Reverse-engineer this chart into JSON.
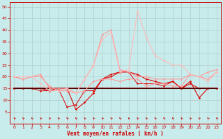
{
  "xlabel": "Vent moyen/en rafales ( km/h )",
  "xlim": [
    -0.5,
    23.5
  ],
  "ylim": [
    0,
    52
  ],
  "yticks": [
    5,
    10,
    15,
    20,
    25,
    30,
    35,
    40,
    45,
    50
  ],
  "xticks": [
    0,
    1,
    2,
    3,
    4,
    5,
    6,
    7,
    8,
    9,
    10,
    11,
    12,
    13,
    14,
    15,
    16,
    17,
    18,
    19,
    20,
    21,
    22,
    23
  ],
  "bg_color": "#c8ecec",
  "grid_color": "#b0cccc",
  "axis_color": "#cc0000",
  "series": [
    {
      "x": [
        0,
        1,
        2,
        3,
        4,
        5,
        6,
        7,
        8,
        9,
        10,
        11,
        12,
        13,
        14,
        15,
        16,
        17,
        18,
        19,
        20,
        21,
        22,
        23
      ],
      "y": [
        15,
        15,
        15,
        15,
        14,
        15,
        15,
        6,
        9,
        13,
        19,
        21,
        22,
        22,
        21,
        19,
        18,
        17,
        18,
        15,
        18,
        11,
        15,
        15
      ],
      "color": "#dd0000",
      "lw": 0.8,
      "marker": "D",
      "ms": 1.5
    },
    {
      "x": [
        0,
        1,
        2,
        3,
        4,
        5,
        6,
        7,
        8,
        9,
        10,
        11,
        12,
        13,
        14,
        15,
        16,
        17,
        18,
        19,
        20,
        21,
        22,
        23
      ],
      "y": [
        15,
        15,
        15,
        14,
        14,
        15,
        7,
        8,
        14,
        14,
        19,
        20,
        22,
        22,
        17,
        17,
        17,
        16,
        18,
        15,
        17,
        15,
        15,
        15
      ],
      "color": "#dd0000",
      "lw": 0.7,
      "marker": "o",
      "ms": 1.5
    },
    {
      "x": [
        0,
        1,
        2,
        3,
        4,
        5,
        6,
        7,
        8,
        9,
        10,
        11,
        12,
        13,
        14,
        15,
        16,
        17,
        18,
        19,
        20,
        21,
        22,
        23
      ],
      "y": [
        15,
        15,
        15,
        15,
        15,
        15,
        15,
        15,
        15,
        15,
        15,
        15,
        15,
        15,
        15,
        15,
        15,
        15,
        15,
        15,
        15,
        15,
        15,
        15
      ],
      "color": "#880000",
      "lw": 1.2,
      "marker": null,
      "ms": 0
    },
    {
      "x": [
        0,
        1,
        2,
        3,
        4,
        5,
        6,
        7,
        8,
        9,
        10,
        11,
        12,
        13,
        14,
        15,
        16,
        17,
        18,
        19,
        20,
        21,
        22,
        23
      ],
      "y": [
        15,
        15,
        15,
        15,
        15,
        15,
        15,
        15,
        15,
        15,
        15,
        15,
        15,
        15,
        15,
        15,
        15,
        15,
        15,
        15,
        15,
        15,
        15,
        15
      ],
      "color": "#440000",
      "lw": 0.8,
      "marker": null,
      "ms": 0
    },
    {
      "x": [
        0,
        1,
        2,
        3,
        4,
        5,
        6,
        7,
        8,
        9,
        10,
        11,
        12,
        13,
        14,
        15,
        16,
        17,
        18,
        19,
        20,
        21,
        22,
        23
      ],
      "y": [
        20,
        19,
        20,
        20,
        16,
        14,
        14,
        13,
        14,
        18,
        19,
        19,
        18,
        19,
        19,
        16,
        17,
        17,
        16,
        16,
        21,
        20,
        22,
        23
      ],
      "color": "#ff9999",
      "lw": 0.8,
      "marker": "D",
      "ms": 1.5
    },
    {
      "x": [
        0,
        1,
        2,
        3,
        4,
        5,
        6,
        7,
        8,
        9,
        10,
        11,
        12,
        13,
        14,
        15,
        16,
        17,
        18,
        19,
        20,
        21,
        22,
        23
      ],
      "y": [
        20,
        19,
        20,
        21,
        15,
        15,
        15,
        13,
        19,
        25,
        38,
        40,
        23,
        22,
        20,
        20,
        19,
        19,
        19,
        19,
        21,
        20,
        19,
        22
      ],
      "color": "#ff9999",
      "lw": 0.8,
      "marker": "o",
      "ms": 1.5
    },
    {
      "x": [
        0,
        1,
        2,
        3,
        4,
        5,
        6,
        7,
        8,
        9,
        10,
        11,
        12,
        13,
        14,
        15,
        16,
        17,
        18,
        19,
        20,
        21,
        22,
        23
      ],
      "y": [
        20,
        20,
        20,
        17,
        14,
        14,
        15,
        13,
        19,
        25,
        36,
        39,
        22,
        23,
        48,
        37,
        29,
        27,
        25,
        25,
        21,
        20,
        18,
        22
      ],
      "color": "#ffbbbb",
      "lw": 0.8,
      "marker": "o",
      "ms": 1.5
    }
  ],
  "wind_x": [
    0,
    1,
    2,
    3,
    4,
    5,
    6,
    7,
    8,
    9,
    10,
    11,
    12,
    13,
    14,
    15,
    16,
    17,
    18,
    19,
    20,
    21,
    22,
    23
  ],
  "arrow_color": "#cc0000"
}
